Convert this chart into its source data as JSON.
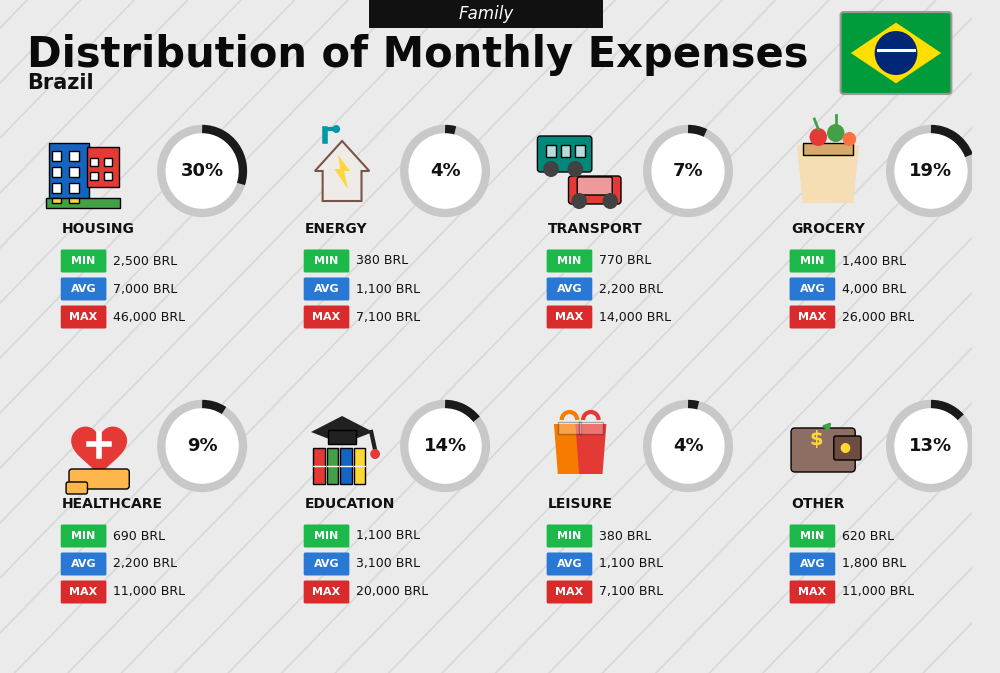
{
  "title": "Distribution of Monthly Expenses",
  "subtitle": "Brazil",
  "header_label": "Family",
  "bg_color": "#ebebeb",
  "categories": [
    {
      "name": "HOUSING",
      "pct": 30,
      "min_val": "2,500 BRL",
      "avg_val": "7,000 BRL",
      "max_val": "46,000 BRL",
      "icon": "🏗",
      "row": 0,
      "col": 0
    },
    {
      "name": "ENERGY",
      "pct": 4,
      "min_val": "380 BRL",
      "avg_val": "1,100 BRL",
      "max_val": "7,100 BRL",
      "icon": "⚡",
      "row": 0,
      "col": 1
    },
    {
      "name": "TRANSPORT",
      "pct": 7,
      "min_val": "770 BRL",
      "avg_val": "2,200 BRL",
      "max_val": "14,000 BRL",
      "icon": "🚌",
      "row": 0,
      "col": 2
    },
    {
      "name": "GROCERY",
      "pct": 19,
      "min_val": "1,400 BRL",
      "avg_val": "4,000 BRL",
      "max_val": "26,000 BRL",
      "icon": "🛒",
      "row": 0,
      "col": 3
    },
    {
      "name": "HEALTHCARE",
      "pct": 9,
      "min_val": "690 BRL",
      "avg_val": "2,200 BRL",
      "max_val": "11,000 BRL",
      "icon": "❤",
      "row": 1,
      "col": 0
    },
    {
      "name": "EDUCATION",
      "pct": 14,
      "min_val": "1,100 BRL",
      "avg_val": "3,100 BRL",
      "max_val": "20,000 BRL",
      "icon": "🎓",
      "row": 1,
      "col": 1
    },
    {
      "name": "LEISURE",
      "pct": 4,
      "min_val": "380 BRL",
      "avg_val": "1,100 BRL",
      "max_val": "7,100 BRL",
      "icon": "🛍",
      "row": 1,
      "col": 2
    },
    {
      "name": "OTHER",
      "pct": 13,
      "min_val": "620 BRL",
      "avg_val": "1,800 BRL",
      "max_val": "11,000 BRL",
      "icon": "👜",
      "row": 1,
      "col": 3
    }
  ],
  "min_color": "#1cb84a",
  "avg_color": "#2979d4",
  "max_color": "#d92b2b",
  "label_color": "#ffffff",
  "text_color": "#111111",
  "arc_color": "#1a1a1a",
  "arc_bg_color": "#c8c8c8",
  "icon_colors": {
    "HOUSING": [
      "#1565C0",
      "#e53935",
      "#43a047"
    ],
    "ENERGY": [
      "#00838f",
      "#f9a825",
      "#00838f"
    ],
    "TRANSPORT": [
      "#00897b",
      "#e53935",
      "#f9a825"
    ],
    "GROCERY": [
      "#f57c00",
      "#43a047",
      "#e53935"
    ],
    "HEALTHCARE": [
      "#e53935",
      "#e91e63",
      "#f48fb1"
    ],
    "EDUCATION": [
      "#43a047",
      "#e53935",
      "#1565C0"
    ],
    "LEISURE": [
      "#f57c00",
      "#e53935",
      "#f9a825"
    ],
    "OTHER": [
      "#795548",
      "#f9a825",
      "#43a047"
    ]
  }
}
